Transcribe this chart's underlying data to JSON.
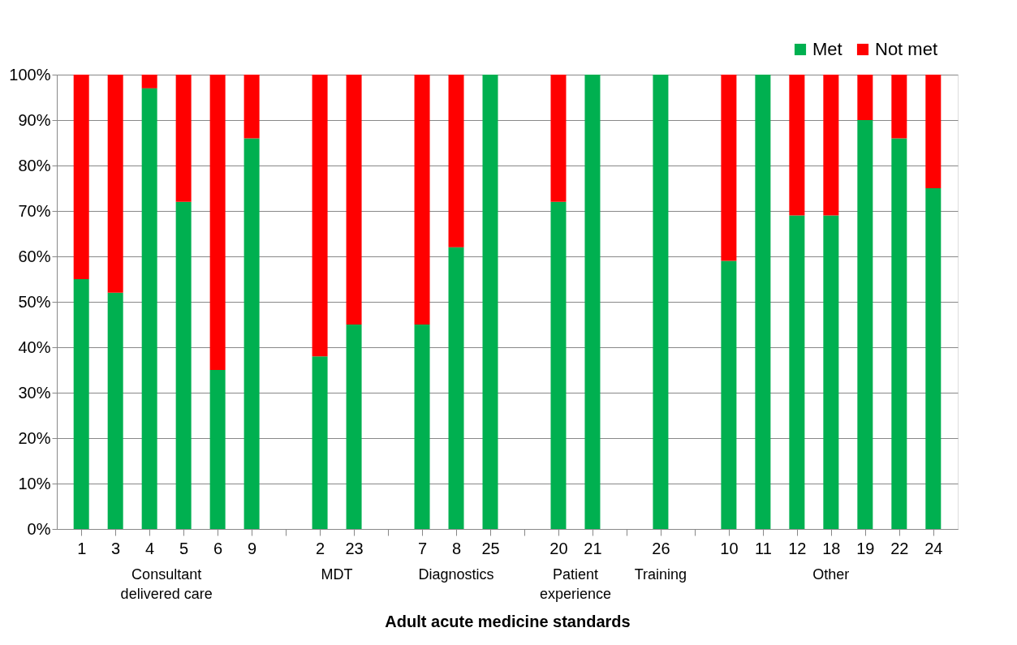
{
  "chart_data": {
    "type": "bar",
    "stacked": true,
    "xlabel": "Adult acute medicine standards",
    "categories": [
      "1",
      "3",
      "4",
      "5",
      "6",
      "9",
      null,
      "2",
      "23",
      null,
      "7",
      "8",
      "25",
      null,
      "20",
      "21",
      null,
      "26",
      null,
      "10",
      "11",
      "12",
      "18",
      "19",
      "22",
      "24"
    ],
    "series": [
      {
        "name": "Met",
        "color": "#00b050",
        "values": [
          55,
          52,
          97,
          72,
          35,
          86,
          null,
          38,
          45,
          null,
          45,
          62,
          100,
          null,
          72,
          100,
          null,
          100,
          null,
          59,
          100,
          69,
          69,
          90,
          86,
          75
        ]
      },
      {
        "name": "Not met",
        "color": "#ff0000",
        "values": [
          45,
          48,
          3,
          28,
          65,
          14,
          null,
          62,
          55,
          null,
          55,
          38,
          0,
          null,
          28,
          0,
          null,
          0,
          null,
          41,
          0,
          31,
          31,
          10,
          14,
          25
        ]
      }
    ],
    "ylim": [
      0,
      100
    ],
    "yticks": [
      {
        "value": 0,
        "label": "0%"
      },
      {
        "value": 10,
        "label": "10%"
      },
      {
        "value": 20,
        "label": "20%"
      },
      {
        "value": 30,
        "label": "30%"
      },
      {
        "value": 40,
        "label": "40%"
      },
      {
        "value": 50,
        "label": "50%"
      },
      {
        "value": 60,
        "label": "60%"
      },
      {
        "value": 70,
        "label": "70%"
      },
      {
        "value": 80,
        "label": "80%"
      },
      {
        "value": 90,
        "label": "90%"
      },
      {
        "value": 100,
        "label": "100%"
      }
    ],
    "grid": "y",
    "legend": "top right",
    "annotations": [
      "Consultant delivered care",
      "MDT",
      "Diagnostics",
      "Patient experience",
      "Training",
      "Other"
    ]
  }
}
